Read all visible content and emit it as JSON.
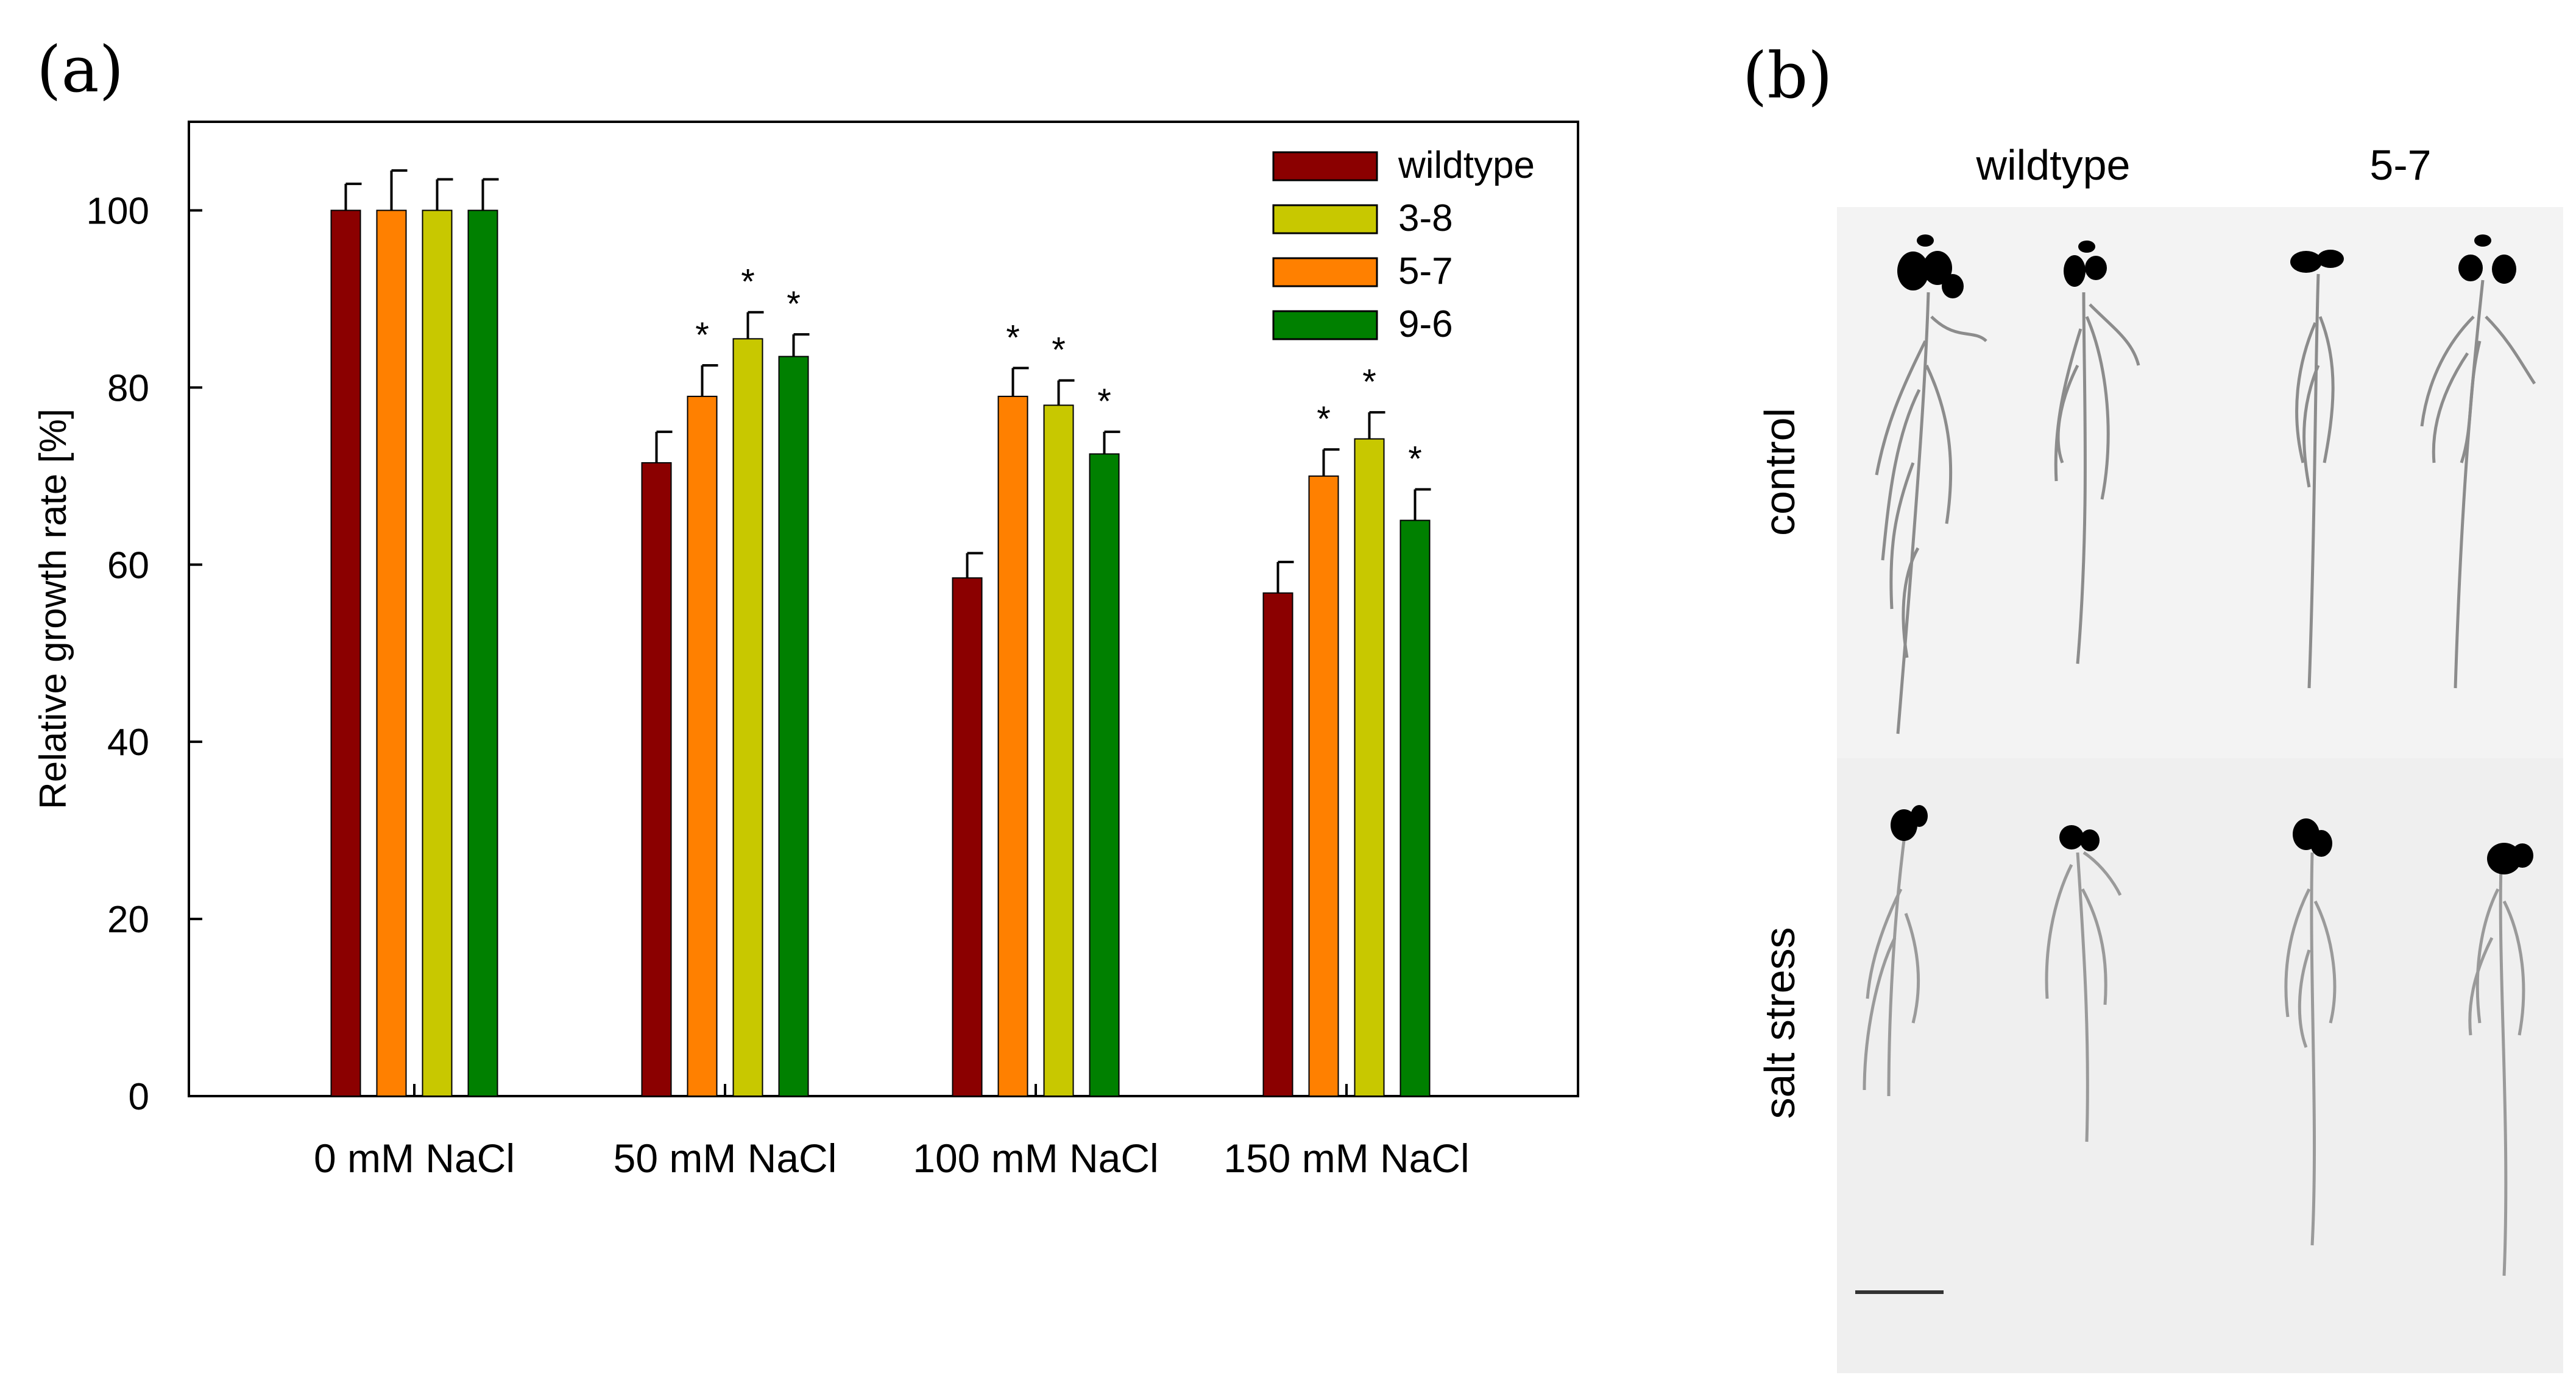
{
  "panel_a_label": "(a)",
  "panel_b_label": "(b)",
  "chart_data": {
    "type": "bar",
    "title": "",
    "xlabel": "",
    "ylabel": "Relative growth rate [%]",
    "ylim": [
      0,
      110
    ],
    "yticks": [
      0,
      20,
      40,
      60,
      80,
      100
    ],
    "categories": [
      "0 mM NaCl",
      "50 mM NaCl",
      "100 mM NaCl",
      "150 mM NaCl"
    ],
    "series": [
      {
        "name": "wildtype",
        "color": "#8b0000",
        "values": [
          100,
          71.5,
          58.5,
          56.8
        ],
        "errors": [
          3,
          3.5,
          2.8,
          3.5
        ],
        "significant": [
          false,
          false,
          false,
          false
        ]
      },
      {
        "name": "5-7",
        "color": "#ff8000",
        "values": [
          100,
          79,
          79,
          70
        ],
        "errors": [
          4.5,
          3.5,
          3.2,
          3
        ],
        "significant": [
          false,
          true,
          true,
          true
        ]
      },
      {
        "name": "3-8",
        "color": "#c8c800",
        "values": [
          100,
          85.5,
          78,
          74.2
        ],
        "errors": [
          3.5,
          3,
          2.8,
          3
        ],
        "significant": [
          false,
          true,
          true,
          true
        ]
      },
      {
        "name": "9-6",
        "color": "#008000",
        "values": [
          100,
          83.5,
          72.5,
          65
        ],
        "errors": [
          3.5,
          2.5,
          2.5,
          3.5
        ],
        "significant": [
          false,
          true,
          true,
          true
        ]
      }
    ],
    "legend": {
      "position": "top-right",
      "entries": [
        {
          "name": "wildtype",
          "color": "#8b0000"
        },
        {
          "name": "3-8",
          "color": "#c8c800"
        },
        {
          "name": "5-7",
          "color": "#ff8000"
        },
        {
          "name": "9-6",
          "color": "#008000"
        }
      ]
    },
    "significance_marker": "*"
  },
  "photo": {
    "column_labels": [
      "wildtype",
      "5-7"
    ],
    "row_labels": [
      "control",
      "salt stress"
    ]
  }
}
